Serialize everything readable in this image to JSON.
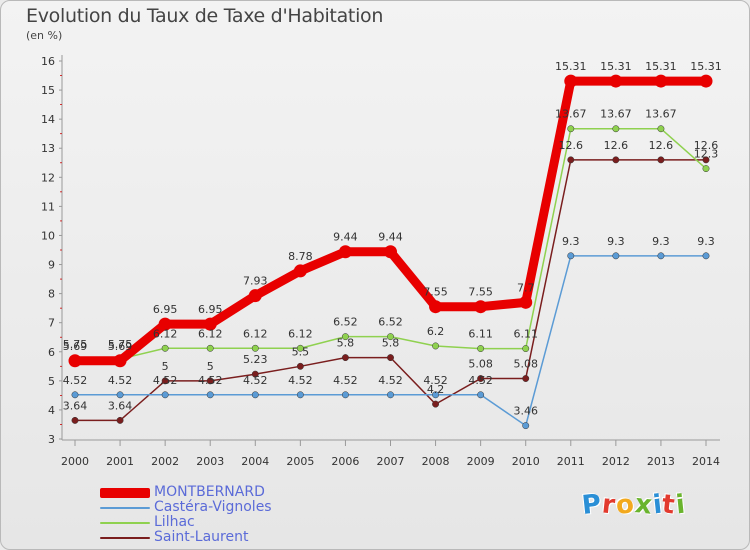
{
  "chart_title": "Evolution du Taux de Taxe d'Habitation",
  "chart_subtitle": "(en %)",
  "logo_text": "Proxiti",
  "chart_data": {
    "type": "line",
    "title": "Evolution du Taux de Taxe d'Habitation",
    "subtitle": "(en %)",
    "x": [
      "2000",
      "2001",
      "2002",
      "2003",
      "2004",
      "2005",
      "2006",
      "2007",
      "2008",
      "2009",
      "2010",
      "2011",
      "2012",
      "2013",
      "2014"
    ],
    "ylim": [
      3,
      16
    ],
    "yticks": [
      3,
      4,
      5,
      6,
      7,
      8,
      9,
      10,
      11,
      12,
      13,
      14,
      15,
      16
    ],
    "grid": false,
    "legend_position": "bottom-left",
    "series": [
      {
        "name": "MONTBERNARD",
        "color": "#e80000",
        "values": [
          5.69,
          5.69,
          6.95,
          6.95,
          7.93,
          8.78,
          9.44,
          9.44,
          7.55,
          7.55,
          7.7,
          15.31,
          15.31,
          15.31,
          15.31
        ],
        "labels": [
          "5.69",
          "5.69",
          "6.95",
          "6.95",
          "7.93",
          "8.78",
          "9.44",
          "9.44",
          "7.55",
          "7.55",
          "7.7",
          "15.31",
          "15.31",
          "15.31",
          "15.31"
        ]
      },
      {
        "name": "Castéra-Vignoles",
        "color": "#5b9bd5",
        "values": [
          4.52,
          4.52,
          4.52,
          4.52,
          4.52,
          4.52,
          4.52,
          4.52,
          4.52,
          4.52,
          3.46,
          9.3,
          9.3,
          9.3,
          9.3
        ],
        "labels": [
          "4.52",
          "4.52",
          "4.52",
          "4.52",
          "4.52",
          "4.52",
          "4.52",
          "4.52",
          "4.52",
          "4.52",
          "3.46",
          "9.3",
          "9.3",
          "9.3",
          "9.3"
        ]
      },
      {
        "name": "Lilhac",
        "color": "#8fd14f",
        "values": [
          5.75,
          5.75,
          6.12,
          6.12,
          6.12,
          6.12,
          6.52,
          6.52,
          6.2,
          6.11,
          6.11,
          13.67,
          13.67,
          13.67,
          12.3
        ],
        "labels": [
          "5.75",
          "5.75",
          "6.12",
          "6.12",
          "6.12",
          "6.12",
          "6.52",
          "6.52",
          "6.2",
          "6.11",
          "6.11",
          "13.67",
          "13.67",
          "13.67",
          "12.3"
        ]
      },
      {
        "name": "Saint-Laurent",
        "color": "#7a1e1e",
        "values": [
          3.64,
          3.64,
          5,
          5,
          5.23,
          5.5,
          5.8,
          5.8,
          4.2,
          5.08,
          5.08,
          12.6,
          12.6,
          12.6,
          12.6
        ],
        "labels": [
          "3.64",
          "3.64",
          "5",
          "5",
          "5.23",
          "5.5",
          "5.8",
          "5.8",
          "4.2",
          "5.08",
          "5.08",
          "12.6",
          "12.6",
          "12.6",
          "12.6"
        ]
      }
    ]
  }
}
